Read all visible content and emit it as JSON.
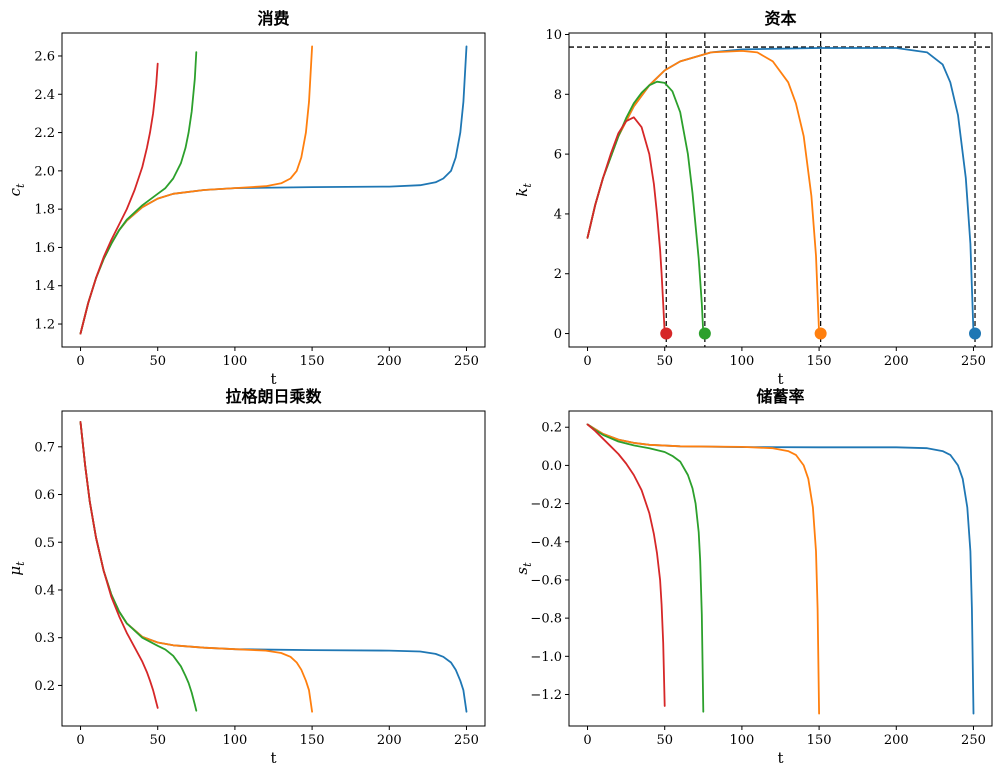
{
  "chart_data": [
    {
      "type": "line",
      "title": "消费",
      "xlabel": "t",
      "ylabel": "c_t",
      "xlim": [
        -12,
        262
      ],
      "ylim": [
        1.08,
        2.72
      ],
      "x_ticks": [
        0,
        50,
        100,
        150,
        200,
        250
      ],
      "x_tick_labels": [
        "0",
        "50",
        "100",
        "150",
        "200",
        "250"
      ],
      "y_ticks": [
        1.2,
        1.4,
        1.6,
        1.8,
        2.0,
        2.2,
        2.4,
        2.6
      ],
      "y_tick_labels": [
        "1.2",
        "1.4",
        "1.6",
        "1.8",
        "2.0",
        "2.2",
        "2.4",
        "2.6"
      ],
      "grid": false,
      "series": [
        {
          "color": "#1f77b4",
          "x": [
            0,
            5,
            10,
            15,
            20,
            25,
            30,
            40,
            50,
            60,
            80,
            100,
            150,
            200,
            220,
            230,
            235,
            240,
            243,
            246,
            248,
            250
          ],
          "y": [
            1.15,
            1.31,
            1.44,
            1.54,
            1.62,
            1.69,
            1.74,
            1.81,
            1.855,
            1.88,
            1.9,
            1.91,
            1.915,
            1.918,
            1.925,
            1.94,
            1.96,
            2.0,
            2.07,
            2.2,
            2.36,
            2.65
          ]
        },
        {
          "color": "#ff7f0e",
          "x": [
            0,
            5,
            10,
            15,
            20,
            25,
            30,
            40,
            50,
            60,
            80,
            100,
            120,
            130,
            136,
            140,
            143,
            146,
            148,
            150
          ],
          "y": [
            1.15,
            1.31,
            1.44,
            1.54,
            1.62,
            1.69,
            1.74,
            1.81,
            1.855,
            1.88,
            1.9,
            1.91,
            1.92,
            1.935,
            1.96,
            2.0,
            2.07,
            2.2,
            2.36,
            2.65
          ]
        },
        {
          "color": "#2ca02c",
          "x": [
            0,
            5,
            10,
            15,
            20,
            25,
            30,
            40,
            50,
            55,
            60,
            65,
            68,
            70,
            72,
            74,
            75
          ],
          "y": [
            1.15,
            1.31,
            1.44,
            1.54,
            1.62,
            1.69,
            1.745,
            1.82,
            1.88,
            1.91,
            1.96,
            2.04,
            2.12,
            2.2,
            2.31,
            2.48,
            2.62
          ]
        },
        {
          "color": "#d62728",
          "x": [
            0,
            5,
            10,
            15,
            20,
            25,
            30,
            35,
            40,
            43,
            45,
            47,
            48,
            49,
            50
          ],
          "y": [
            1.15,
            1.31,
            1.44,
            1.55,
            1.64,
            1.72,
            1.8,
            1.9,
            2.02,
            2.12,
            2.2,
            2.3,
            2.37,
            2.45,
            2.56
          ]
        }
      ]
    },
    {
      "type": "line",
      "title": "资本",
      "xlabel": "t",
      "ylabel": "k_t",
      "xlim": [
        -12,
        262
      ],
      "ylim": [
        -0.45,
        10.05
      ],
      "x_ticks": [
        0,
        50,
        100,
        150,
        200,
        250
      ],
      "x_tick_labels": [
        "0",
        "50",
        "100",
        "150",
        "200",
        "250"
      ],
      "y_ticks": [
        0,
        2,
        4,
        6,
        8,
        10
      ],
      "y_tick_labels": [
        "0",
        "2",
        "4",
        "6",
        "8",
        "10"
      ],
      "grid": false,
      "hline": {
        "y": 9.58,
        "style": "dashed",
        "color": "#000000"
      },
      "vlines": [
        {
          "x": 51
        },
        {
          "x": 76
        },
        {
          "x": 151
        },
        {
          "x": 251
        }
      ],
      "markers": [
        {
          "x": 51,
          "y": 0,
          "color": "#d62728"
        },
        {
          "x": 76,
          "y": 0,
          "color": "#2ca02c"
        },
        {
          "x": 151,
          "y": 0,
          "color": "#ff7f0e"
        },
        {
          "x": 251,
          "y": 0,
          "color": "#1f77b4"
        }
      ],
      "series": [
        {
          "color": "#1f77b4",
          "x": [
            0,
            5,
            10,
            20,
            30,
            40,
            50,
            60,
            80,
            100,
            150,
            200,
            220,
            230,
            235,
            240,
            245,
            248,
            250
          ],
          "y": [
            3.2,
            4.3,
            5.2,
            6.6,
            7.6,
            8.3,
            8.8,
            9.1,
            9.4,
            9.5,
            9.55,
            9.55,
            9.4,
            9.0,
            8.4,
            7.3,
            5.2,
            3.0,
            0
          ]
        },
        {
          "color": "#ff7f0e",
          "x": [
            0,
            5,
            10,
            20,
            30,
            40,
            50,
            60,
            80,
            100,
            110,
            120,
            130,
            135,
            140,
            145,
            148,
            150
          ],
          "y": [
            3.2,
            4.3,
            5.2,
            6.6,
            7.6,
            8.3,
            8.8,
            9.1,
            9.4,
            9.45,
            9.4,
            9.1,
            8.4,
            7.7,
            6.6,
            4.6,
            2.6,
            0
          ]
        },
        {
          "color": "#2ca02c",
          "x": [
            0,
            5,
            10,
            15,
            20,
            25,
            30,
            35,
            40,
            45,
            50,
            55,
            60,
            65,
            68,
            70,
            72,
            74,
            75
          ],
          "y": [
            3.2,
            4.3,
            5.2,
            5.9,
            6.6,
            7.2,
            7.7,
            8.05,
            8.3,
            8.42,
            8.38,
            8.1,
            7.4,
            6.0,
            4.7,
            3.6,
            2.5,
            1.0,
            0
          ]
        },
        {
          "color": "#d62728",
          "x": [
            0,
            5,
            10,
            15,
            20,
            25,
            30,
            35,
            40,
            43,
            45,
            47,
            48,
            49,
            50
          ],
          "y": [
            3.2,
            4.3,
            5.2,
            6.0,
            6.7,
            7.1,
            7.23,
            6.9,
            6.0,
            5.0,
            4.0,
            2.8,
            2.0,
            1.0,
            0
          ]
        }
      ]
    },
    {
      "type": "line",
      "title": "拉格朗日乘数",
      "xlabel": "t",
      "ylabel": "μ_t",
      "xlim": [
        -12,
        262
      ],
      "ylim": [
        0.115,
        0.775
      ],
      "x_ticks": [
        0,
        50,
        100,
        150,
        200,
        250
      ],
      "x_tick_labels": [
        "0",
        "50",
        "100",
        "150",
        "200",
        "250"
      ],
      "y_ticks": [
        0.2,
        0.3,
        0.4,
        0.5,
        0.6,
        0.7
      ],
      "y_tick_labels": [
        "0.2",
        "0.3",
        "0.4",
        "0.5",
        "0.6",
        "0.7"
      ],
      "grid": false,
      "series": [
        {
          "color": "#1f77b4",
          "x": [
            0,
            3,
            6,
            10,
            15,
            20,
            25,
            30,
            40,
            50,
            60,
            80,
            100,
            150,
            200,
            220,
            230,
            235,
            240,
            243,
            246,
            248,
            250
          ],
          "y": [
            0.752,
            0.66,
            0.585,
            0.51,
            0.44,
            0.39,
            0.355,
            0.33,
            0.302,
            0.29,
            0.284,
            0.279,
            0.276,
            0.274,
            0.273,
            0.271,
            0.266,
            0.26,
            0.248,
            0.233,
            0.21,
            0.19,
            0.145
          ]
        },
        {
          "color": "#ff7f0e",
          "x": [
            0,
            3,
            6,
            10,
            15,
            20,
            25,
            30,
            40,
            50,
            60,
            80,
            100,
            120,
            130,
            136,
            140,
            143,
            146,
            148,
            150
          ],
          "y": [
            0.752,
            0.66,
            0.585,
            0.51,
            0.44,
            0.39,
            0.355,
            0.33,
            0.302,
            0.29,
            0.284,
            0.279,
            0.276,
            0.273,
            0.268,
            0.26,
            0.248,
            0.233,
            0.21,
            0.19,
            0.145
          ]
        },
        {
          "color": "#2ca02c",
          "x": [
            0,
            3,
            6,
            10,
            15,
            20,
            25,
            30,
            40,
            50,
            55,
            60,
            65,
            68,
            70,
            72,
            74,
            75
          ],
          "y": [
            0.752,
            0.66,
            0.585,
            0.51,
            0.44,
            0.39,
            0.355,
            0.33,
            0.3,
            0.283,
            0.275,
            0.262,
            0.24,
            0.22,
            0.205,
            0.185,
            0.16,
            0.147
          ]
        },
        {
          "color": "#d62728",
          "x": [
            0,
            3,
            6,
            10,
            15,
            20,
            25,
            30,
            35,
            40,
            43,
            45,
            47,
            48,
            49,
            50
          ],
          "y": [
            0.752,
            0.66,
            0.585,
            0.51,
            0.44,
            0.385,
            0.345,
            0.31,
            0.28,
            0.25,
            0.228,
            0.21,
            0.19,
            0.178,
            0.165,
            0.153
          ]
        }
      ]
    },
    {
      "type": "line",
      "title": "储蓄率",
      "xlabel": "t",
      "ylabel": "s_t",
      "xlim": [
        -12,
        262
      ],
      "ylim": [
        -1.365,
        0.285
      ],
      "x_ticks": [
        0,
        50,
        100,
        150,
        200,
        250
      ],
      "x_tick_labels": [
        "0",
        "50",
        "100",
        "150",
        "200",
        "250"
      ],
      "y_ticks": [
        0.2,
        0.0,
        -0.2,
        -0.4,
        -0.6,
        -0.8,
        -1.0,
        -1.2
      ],
      "y_tick_labels": [
        "0.2",
        "0.0",
        "−0.2",
        "−0.4",
        "−0.6",
        "−0.8",
        "−1.0",
        "−1.2"
      ],
      "grid": false,
      "series": [
        {
          "color": "#1f77b4",
          "x": [
            0,
            5,
            10,
            20,
            30,
            40,
            60,
            100,
            150,
            200,
            220,
            230,
            235,
            240,
            243,
            246,
            248,
            249,
            250
          ],
          "y": [
            0.215,
            0.19,
            0.165,
            0.135,
            0.118,
            0.108,
            0.1,
            0.096,
            0.095,
            0.095,
            0.09,
            0.075,
            0.055,
            0.0,
            -0.07,
            -0.22,
            -0.45,
            -0.75,
            -1.3
          ]
        },
        {
          "color": "#ff7f0e",
          "x": [
            0,
            5,
            10,
            20,
            30,
            40,
            60,
            100,
            120,
            130,
            135,
            140,
            143,
            146,
            148,
            149,
            150
          ],
          "y": [
            0.215,
            0.19,
            0.165,
            0.135,
            0.118,
            0.108,
            0.1,
            0.097,
            0.09,
            0.075,
            0.055,
            0.0,
            -0.07,
            -0.22,
            -0.45,
            -0.75,
            -1.3
          ]
        },
        {
          "color": "#2ca02c",
          "x": [
            0,
            5,
            10,
            20,
            30,
            40,
            50,
            55,
            60,
            65,
            68,
            70,
            72,
            73,
            74,
            75
          ],
          "y": [
            0.215,
            0.185,
            0.16,
            0.125,
            0.105,
            0.09,
            0.07,
            0.05,
            0.02,
            -0.05,
            -0.12,
            -0.2,
            -0.35,
            -0.5,
            -0.78,
            -1.29
          ]
        },
        {
          "color": "#d62728",
          "x": [
            0,
            5,
            10,
            15,
            20,
            25,
            30,
            35,
            40,
            43,
            45,
            47,
            48,
            49,
            50
          ],
          "y": [
            0.215,
            0.18,
            0.14,
            0.1,
            0.06,
            0.01,
            -0.05,
            -0.13,
            -0.25,
            -0.36,
            -0.46,
            -0.6,
            -0.73,
            -0.93,
            -1.26
          ]
        }
      ]
    }
  ]
}
